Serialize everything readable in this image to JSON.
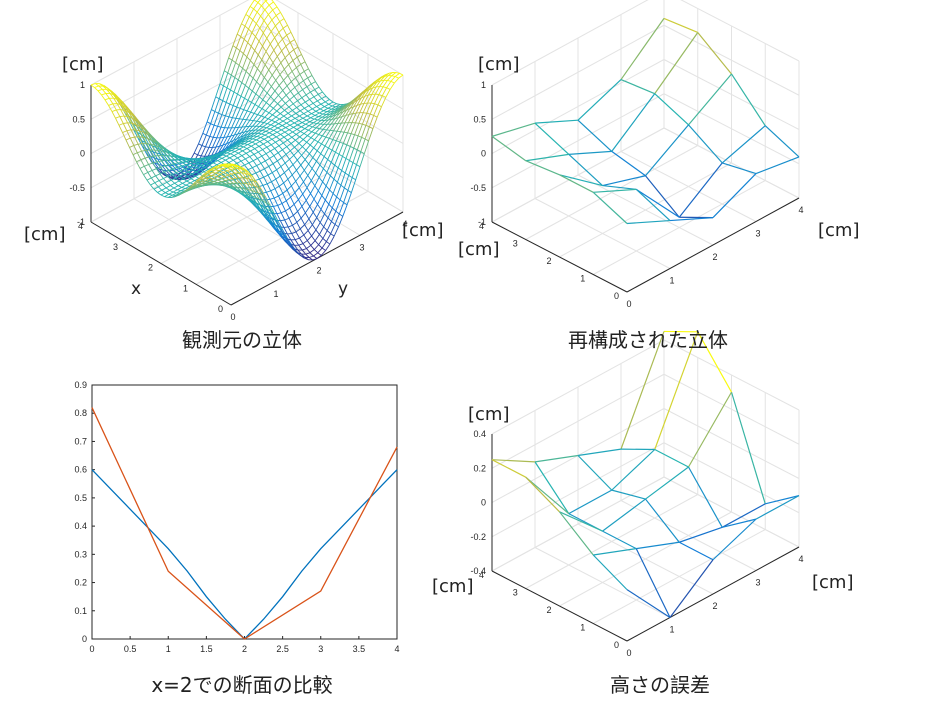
{
  "captions": {
    "top_left": "観測元の立体",
    "top_right": "再構成された立体",
    "bottom_left": "x=2での断面の比較",
    "bottom_right": "高さの誤差"
  },
  "units": {
    "tl_z": "[cm]",
    "tl_x": "[cm]",
    "tl_y": "[cm]",
    "tr_z": "[cm]",
    "tr_x": "[cm]",
    "tr_y": "[cm]",
    "br_z": "[cm]",
    "br_x": "[cm]",
    "br_y": "[cm]"
  },
  "axis_names": {
    "tl_x": "x",
    "tl_y": "y"
  },
  "surface_ticks": {
    "x": [
      "0",
      "1",
      "2",
      "3",
      "4"
    ],
    "y": [
      "0",
      "1",
      "2",
      "3",
      "4"
    ],
    "z_surface": [
      "-1",
      "-0.5",
      "0",
      "0.5",
      "1"
    ],
    "z_error": [
      "-0.4",
      "-0.2",
      "0",
      "0.2",
      "0.4"
    ]
  },
  "chart_data": [
    {
      "type": "surface",
      "description": "mesh surface z = cos(pi*y/2) * (cos(pi*x/4))^2 over x,y in [0,4]",
      "x_range": [
        0,
        4
      ],
      "y_range": [
        0,
        4
      ],
      "z_range": [
        -1,
        1
      ],
      "grid": true
    },
    {
      "type": "surface",
      "description": "reconstructed coarse 5x5 mesh",
      "x_range": [
        0,
        4
      ],
      "y_range": [
        0,
        4
      ],
      "z_range": [
        -1,
        1
      ],
      "grid": true
    },
    {
      "type": "line",
      "x_range": [
        0,
        4
      ],
      "y_range": [
        0,
        0.9
      ],
      "xticks": [
        "0",
        "0.5",
        "1",
        "1.5",
        "2",
        "2.5",
        "3",
        "3.5",
        "4"
      ],
      "yticks": [
        "0",
        "0.1",
        "0.2",
        "0.3",
        "0.4",
        "0.5",
        "0.6",
        "0.7",
        "0.8",
        "0.9"
      ],
      "series": [
        {
          "color": "#0072BD",
          "x": [
            0,
            0.25,
            0.5,
            0.75,
            1,
            1.25,
            1.5,
            1.75,
            2,
            2.25,
            2.5,
            2.75,
            3,
            3.25,
            3.5,
            3.75,
            4
          ],
          "values": [
            0.6,
            0.53,
            0.46,
            0.39,
            0.32,
            0.24,
            0.15,
            0.07,
            0.0,
            0.07,
            0.15,
            0.24,
            0.32,
            0.39,
            0.46,
            0.53,
            0.6
          ]
        },
        {
          "color": "#D95319",
          "x": [
            0,
            1,
            2,
            3,
            4
          ],
          "values": [
            0.82,
            0.24,
            0.0,
            0.17,
            0.68
          ]
        }
      ]
    },
    {
      "type": "surface",
      "description": "height error mesh",
      "x_range": [
        0,
        4
      ],
      "y_range": [
        0,
        4
      ],
      "z_range": [
        -0.4,
        0.4
      ],
      "grid": true
    }
  ]
}
